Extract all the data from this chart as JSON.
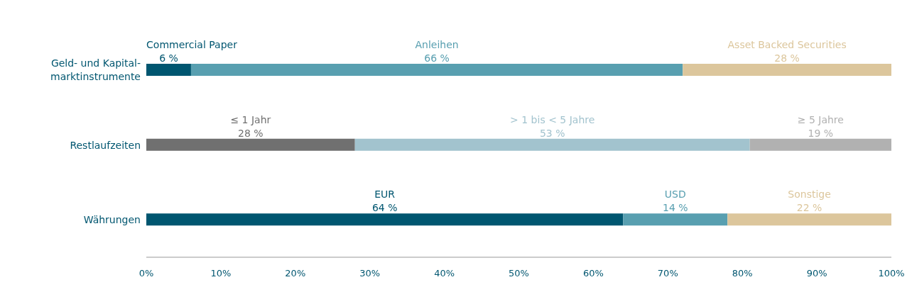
{
  "chart_data": {
    "type": "bar",
    "orientation": "horizontal",
    "stacked": true,
    "categories": [
      "Geld- und Kapital-marktinstrumente",
      "Restlaufzeiten",
      "Währungen"
    ],
    "series": [
      {
        "name": "Commercial Paper",
        "color": "#005670",
        "values": [
          6,
          null,
          null
        ],
        "value_labels": [
          "6 %",
          null,
          null
        ]
      },
      {
        "name": "Anleihen",
        "color": "#589fb0",
        "values": [
          66,
          null,
          null
        ],
        "value_labels": [
          "66 %",
          null,
          null
        ]
      },
      {
        "name": "Asset Backed Securities",
        "color": "#dcc69c",
        "values": [
          28,
          null,
          null
        ],
        "value_labels": [
          "28 %",
          null,
          null
        ]
      },
      {
        "name": "≤ 1 Jahr",
        "color": "#707070",
        "values": [
          null,
          28,
          null
        ],
        "value_labels": [
          null,
          "28 %",
          null
        ]
      },
      {
        "name": "> 1 bis < 5 Jahre",
        "color": "#a2c3ce",
        "values": [
          null,
          53,
          null
        ],
        "value_labels": [
          null,
          "53 %",
          null
        ]
      },
      {
        "name": "≥ 5 Jahre",
        "color": "#b1b1b1",
        "values": [
          null,
          19,
          null
        ],
        "value_labels": [
          null,
          "19 %",
          null
        ]
      },
      {
        "name": "EUR",
        "color": "#005670",
        "values": [
          null,
          null,
          64
        ],
        "value_labels": [
          null,
          null,
          "64 %"
        ]
      },
      {
        "name": "USD",
        "color": "#589fb0",
        "values": [
          null,
          null,
          14
        ],
        "value_labels": [
          null,
          null,
          "14 %"
        ]
      },
      {
        "name": "Sonstige",
        "color": "#dcc69c",
        "values": [
          null,
          null,
          22
        ],
        "value_labels": [
          null,
          null,
          "22 %"
        ]
      }
    ],
    "xlim": [
      0,
      100
    ],
    "xticks": [
      {
        "value": 0,
        "label": "0%"
      },
      {
        "value": 10,
        "label": "10%"
      },
      {
        "value": 20,
        "label": "20%"
      },
      {
        "value": 30,
        "label": "30%"
      },
      {
        "value": 40,
        "label": "40%"
      },
      {
        "value": 50,
        "label": "50%"
      },
      {
        "value": 60,
        "label": "60%"
      },
      {
        "value": 70,
        "label": "70%"
      },
      {
        "value": 80,
        "label": "80%"
      },
      {
        "value": 90,
        "label": "90%"
      },
      {
        "value": 100,
        "label": "100%"
      }
    ],
    "grid": false,
    "legend": false
  }
}
